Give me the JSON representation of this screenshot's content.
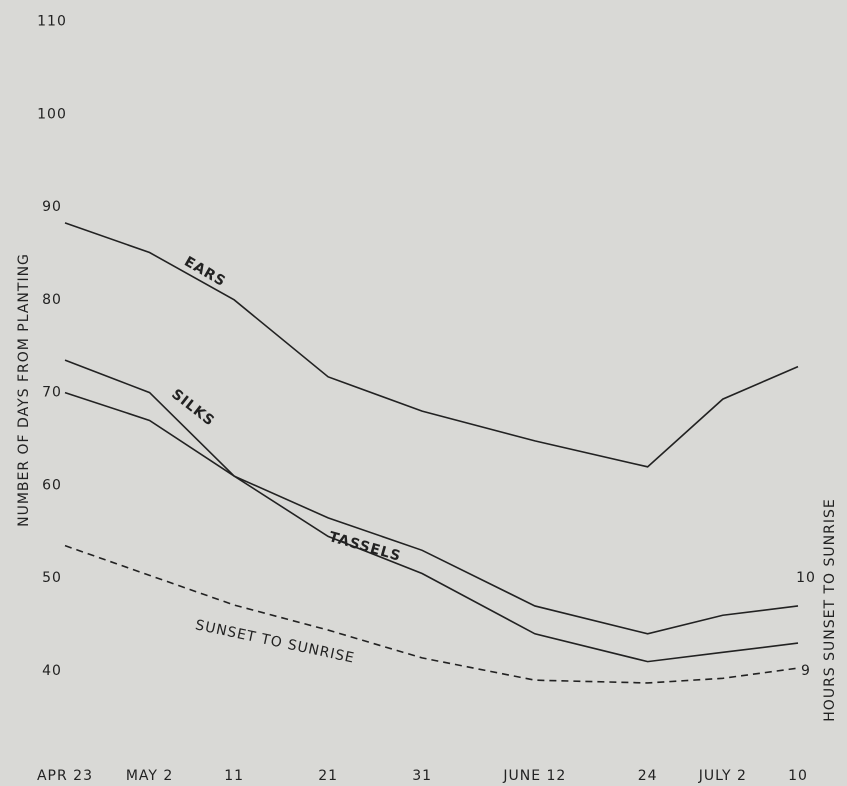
{
  "chart_data": {
    "type": "line",
    "y_label": "NUMBER OF DAYS FROM PLANTING",
    "y2_label": "HOURS SUNSET TO SUNRISE",
    "x": [
      113,
      122,
      131,
      141,
      151,
      163,
      175,
      183,
      191
    ],
    "xlim": [
      113,
      191
    ],
    "xticks": [
      {
        "value": 113,
        "label": "APR 23"
      },
      {
        "value": 122,
        "label": "MAY 2"
      },
      {
        "value": 131,
        "label": "11"
      },
      {
        "value": 141,
        "label": "21"
      },
      {
        "value": 151,
        "label": "31"
      },
      {
        "value": 163,
        "label": "JUNE 12"
      },
      {
        "value": 175,
        "label": "24"
      },
      {
        "value": 183,
        "label": "JULY 2"
      },
      {
        "value": 191,
        "label": "10"
      }
    ],
    "ylim": [
      36,
      112
    ],
    "yticks": [
      40,
      50,
      60,
      70,
      80,
      90,
      100,
      110
    ],
    "y2lim": [
      8.6,
      16.2
    ],
    "y2ticks": [
      9,
      10
    ],
    "series": [
      {
        "name": "EARS",
        "color": "#222222",
        "dash": false,
        "values": [
          88.3,
          85.1,
          80,
          71.7,
          68,
          64.8,
          62,
          69.3,
          72.8
        ]
      },
      {
        "name": "SILKS",
        "color": "#222222",
        "dash": false,
        "values": [
          73.5,
          70,
          61,
          56.5,
          53,
          47,
          44,
          46,
          47
        ]
      },
      {
        "name": "TASSELS",
        "color": "#222222",
        "dash": false,
        "values": [
          70,
          67,
          61,
          54.5,
          50.5,
          44,
          41,
          42,
          43
        ]
      },
      {
        "name": "SUNSET TO SUNRISE",
        "color": "#222222",
        "dash": true,
        "axis": "y2",
        "values": [
          10.35,
          10.03,
          9.71,
          9.44,
          9.14,
          8.9,
          8.87,
          8.92,
          9.03
        ]
      }
    ]
  }
}
